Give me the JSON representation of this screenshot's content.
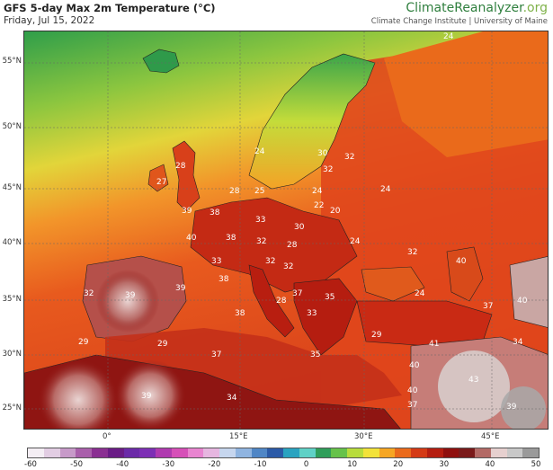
{
  "header": {
    "title": "GFS 5-day Max 2m Temperature (°C)",
    "subtitle": "Friday, Jul 15, 2022",
    "brand_main": "ClimateReanalyzer",
    "brand_suffix": ".org",
    "org": "Climate Change Institute | University of Maine"
  },
  "axes": {
    "lat_labels": [
      "55°N",
      "50°N",
      "45°N",
      "40°N",
      "35°N",
      "30°N",
      "25°N"
    ],
    "lon_labels": [
      "0°",
      "15°E",
      "30°E",
      "45°E"
    ]
  },
  "colorbar": {
    "ticks": [
      "-60",
      "-50",
      "-40",
      "-30",
      "-20",
      "-10",
      "0",
      "10",
      "20",
      "30",
      "40",
      "50"
    ],
    "colors": [
      "#f4eef4",
      "#e2cde3",
      "#c79ac9",
      "#a95fab",
      "#8a2f92",
      "#6a1c86",
      "#6b2aa8",
      "#7d2fb5",
      "#b03ab0",
      "#d64fb8",
      "#e884d0",
      "#e6b6e0",
      "#c6d6ee",
      "#8fb4e0",
      "#4f86c6",
      "#2b5aa7",
      "#2aa3c0",
      "#5fd1c6",
      "#2f9e5a",
      "#66c24a",
      "#b8dc3c",
      "#f2e23a",
      "#f6a623",
      "#ea6a1b",
      "#d43a15",
      "#b51d10",
      "#8f0f0e",
      "#7a1a1a",
      "#b36a66",
      "#e6d0cf",
      "#c8c8c8",
      "#9a9a9a"
    ]
  },
  "map": {
    "labels": [
      {
        "text": "24"
      },
      {
        "text": "28"
      },
      {
        "text": "27"
      },
      {
        "text": "39"
      },
      {
        "text": "38"
      },
      {
        "text": "33"
      },
      {
        "text": "30"
      },
      {
        "text": "40"
      },
      {
        "text": "38"
      },
      {
        "text": "32"
      },
      {
        "text": "28"
      },
      {
        "text": "24"
      },
      {
        "text": "32"
      },
      {
        "text": "33"
      },
      {
        "text": "32"
      },
      {
        "text": "32"
      },
      {
        "text": "39"
      },
      {
        "text": "38"
      },
      {
        "text": "28"
      },
      {
        "text": "37"
      },
      {
        "text": "35"
      },
      {
        "text": "39"
      },
      {
        "text": "24"
      },
      {
        "text": "37"
      },
      {
        "text": "40"
      },
      {
        "text": "32"
      },
      {
        "text": "38"
      },
      {
        "text": "33"
      },
      {
        "text": "29"
      },
      {
        "text": "34"
      },
      {
        "text": "41"
      },
      {
        "text": "29"
      },
      {
        "text": "29"
      },
      {
        "text": "37"
      },
      {
        "text": "35"
      },
      {
        "text": "40"
      },
      {
        "text": "43"
      },
      {
        "text": "40"
      },
      {
        "text": "37"
      },
      {
        "text": "39"
      },
      {
        "text": "34"
      },
      {
        "text": "39"
      },
      {
        "text": "24"
      },
      {
        "text": "24"
      },
      {
        "text": "28"
      },
      {
        "text": "32"
      },
      {
        "text": "30"
      },
      {
        "text": "32"
      },
      {
        "text": "20"
      },
      {
        "text": "25"
      },
      {
        "text": "24"
      },
      {
        "text": "22"
      },
      {
        "text": "40"
      }
    ]
  }
}
